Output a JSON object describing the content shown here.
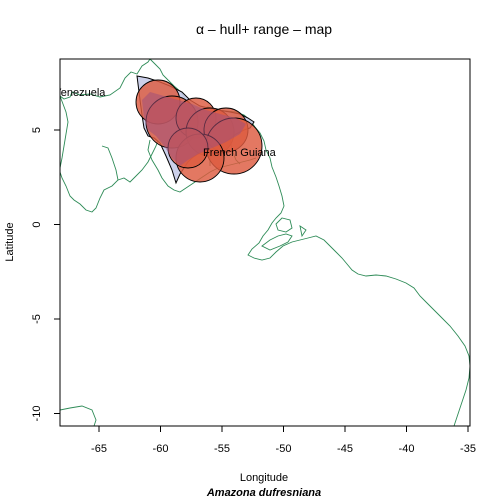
{
  "title": "α – hull+ range – map",
  "xlabel": "Longitude",
  "ylabel": "Latitude",
  "species": "Amazona dufresniana",
  "place_labels": [
    "Venezuela",
    "French Guiana"
  ],
  "x_ticks": [
    {
      "value": -65,
      "label": "-65"
    },
    {
      "value": -60,
      "label": "-60"
    },
    {
      "value": -55,
      "label": "-55"
    },
    {
      "value": -50,
      "label": "-50"
    },
    {
      "value": -45,
      "label": "-45"
    },
    {
      "value": -40,
      "label": "-40"
    },
    {
      "value": -35,
      "label": "-35"
    }
  ],
  "y_ticks": [
    {
      "value": 5,
      "label": "5"
    },
    {
      "value": 0,
      "label": "0"
    },
    {
      "value": -5,
      "label": "-5"
    },
    {
      "value": -10,
      "label": "-10"
    }
  ],
  "colors": {
    "coast": "#2e8b57",
    "alpha_hull_fill": "#c6cbe8",
    "range_fill": "#dd5a40",
    "outline": "#000000"
  }
}
